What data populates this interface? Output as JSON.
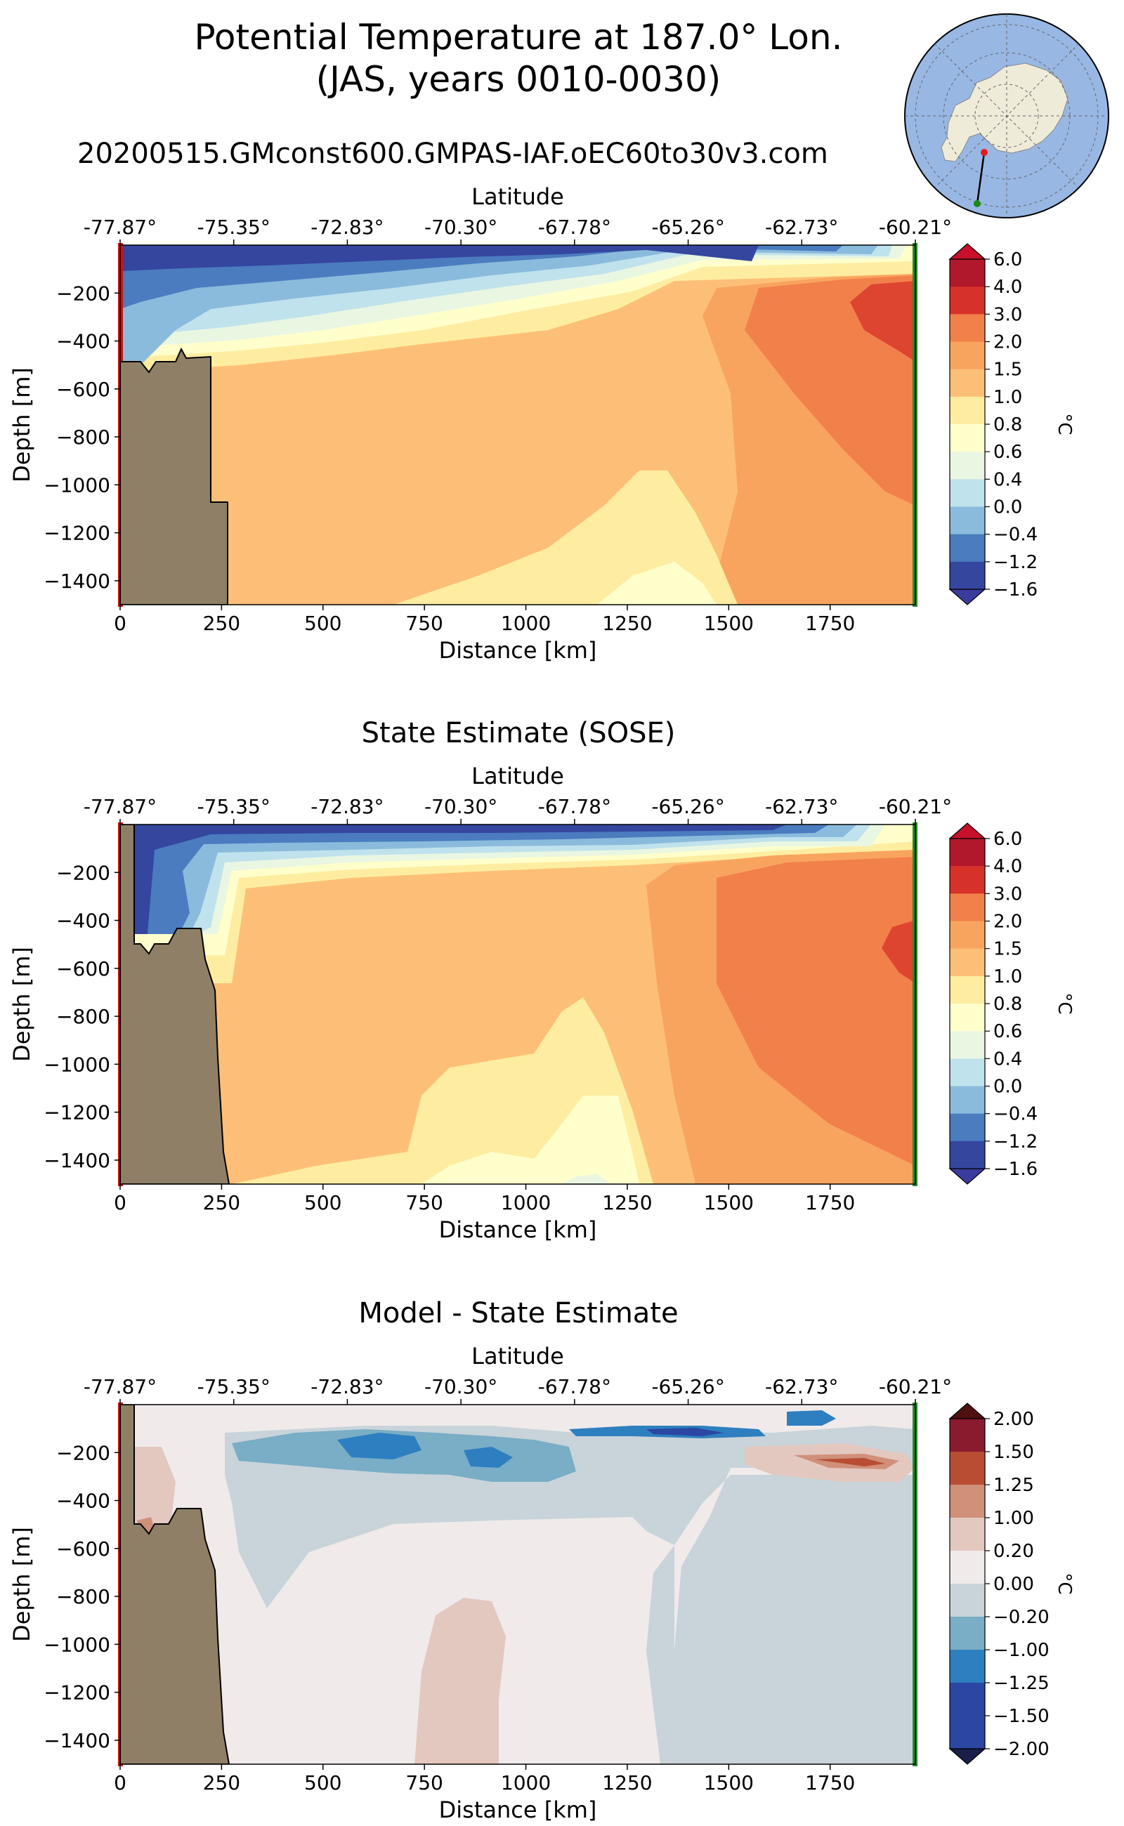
{
  "figure": {
    "title_line1": "Potential Temperature at 187.0° Lon.",
    "title_line2": "(JAS, years 0010-0030)",
    "run_name": "20200515.GMconst600.GMPAS-IAF.oEC60to30v3.com"
  },
  "chart_data": [
    {
      "type": "contour",
      "panel": "model",
      "title": "",
      "xlabel": "Distance [km]",
      "ylabel": "Depth [m]",
      "top_xlabel": "Latitude",
      "xlim": [
        0,
        1960
      ],
      "ylim": [
        -1500,
        0
      ],
      "xticks": [
        "0",
        "250",
        "500",
        "750",
        "1000",
        "1250",
        "1500",
        "1750"
      ],
      "yticks": [
        "−200",
        "−400",
        "−600",
        "−800",
        "−1000",
        "−1200",
        "−1400"
      ],
      "latitude_ticks": [
        "-77.87°",
        "-75.35°",
        "-72.83°",
        "-70.30°",
        "-67.78°",
        "-65.26°",
        "-62.73°",
        "-60.21°"
      ],
      "colorbar_label": "°C",
      "colorbar_levels": [
        "6.0",
        "4.0",
        "3.0",
        "2.0",
        "1.5",
        "1.0",
        "0.8",
        "0.6",
        "0.4",
        "0.0",
        "−0.4",
        "−1.2",
        "−1.6"
      ],
      "bathymetry_km_m": [
        [
          0,
          -500
        ],
        [
          30,
          -500
        ],
        [
          50,
          -500
        ],
        [
          70,
          -530
        ],
        [
          90,
          -500
        ],
        [
          120,
          -500
        ],
        [
          150,
          -440
        ],
        [
          170,
          -470
        ],
        [
          225,
          -470
        ],
        [
          225,
          -1100
        ],
        [
          265,
          -1100
        ],
        [
          265,
          -1500
        ],
        [
          0,
          -1500
        ]
      ]
    },
    {
      "type": "contour",
      "panel": "sose",
      "title": "State Estimate (SOSE)",
      "xlabel": "Distance [km]",
      "ylabel": "Depth [m]",
      "top_xlabel": "Latitude",
      "xlim": [
        0,
        1960
      ],
      "ylim": [
        -1500,
        0
      ],
      "xticks": [
        "0",
        "250",
        "500",
        "750",
        "1000",
        "1250",
        "1500",
        "1750"
      ],
      "yticks": [
        "−200",
        "−400",
        "−600",
        "−800",
        "−1000",
        "−1200",
        "−1400"
      ],
      "latitude_ticks": [
        "-77.87°",
        "-75.35°",
        "-72.83°",
        "-70.30°",
        "-67.78°",
        "-65.26°",
        "-62.73°",
        "-60.21°"
      ],
      "colorbar_label": "°C",
      "colorbar_levels": [
        "6.0",
        "4.0",
        "3.0",
        "2.0",
        "1.5",
        "1.0",
        "0.8",
        "0.6",
        "0.4",
        "0.0",
        "−0.4",
        "−1.2",
        "−1.6"
      ],
      "bathymetry_km_m": [
        [
          0,
          0
        ],
        [
          35,
          0
        ],
        [
          35,
          -500
        ],
        [
          50,
          -500
        ],
        [
          70,
          -530
        ],
        [
          85,
          -500
        ],
        [
          120,
          -500
        ],
        [
          140,
          -440
        ],
        [
          205,
          -440
        ],
        [
          215,
          -540
        ],
        [
          240,
          -640
        ],
        [
          255,
          -860
        ],
        [
          265,
          -1180
        ],
        [
          280,
          -1500
        ],
        [
          0,
          -1500
        ]
      ]
    },
    {
      "type": "contour",
      "panel": "difference",
      "title": "Model - State Estimate",
      "xlabel": "Distance [km]",
      "ylabel": "Depth [m]",
      "top_xlabel": "Latitude",
      "xlim": [
        0,
        1960
      ],
      "ylim": [
        -1500,
        0
      ],
      "xticks": [
        "0",
        "250",
        "500",
        "750",
        "1000",
        "1250",
        "1500",
        "1750"
      ],
      "yticks": [
        "−200",
        "−400",
        "−600",
        "−800",
        "−1000",
        "−1200",
        "−1400"
      ],
      "latitude_ticks": [
        "-77.87°",
        "-75.35°",
        "-72.83°",
        "-70.30°",
        "-67.78°",
        "-65.26°",
        "-62.73°",
        "-60.21°"
      ],
      "colorbar_label": "°C",
      "colorbar_levels": [
        "2.00",
        "1.50",
        "1.25",
        "1.00",
        "0.20",
        "0.00",
        "−0.20",
        "−1.00",
        "−1.25",
        "−1.50",
        "−2.00"
      ],
      "bathymetry_km_m": [
        [
          0,
          0
        ],
        [
          35,
          0
        ],
        [
          35,
          -500
        ],
        [
          50,
          -500
        ],
        [
          70,
          -530
        ],
        [
          85,
          -500
        ],
        [
          120,
          -500
        ],
        [
          140,
          -440
        ],
        [
          205,
          -440
        ],
        [
          215,
          -540
        ],
        [
          240,
          -640
        ],
        [
          255,
          -860
        ],
        [
          265,
          -1180
        ],
        [
          280,
          -1500
        ],
        [
          0,
          -1500
        ]
      ]
    }
  ],
  "inset_map": {
    "description_name": "antarctic-locator-map"
  }
}
